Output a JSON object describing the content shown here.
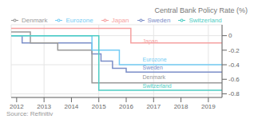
{
  "chart_data": {
    "type": "line",
    "title": "Central Bank Policy Rate (%)",
    "source": "Source: Refinitiv",
    "xlim": [
      2011.8,
      2019.5
    ],
    "ylim": [
      -0.85,
      0.15
    ],
    "xticks": [
      2012,
      2013,
      2014,
      2015,
      2016,
      2017,
      2018,
      2019
    ],
    "yticks": [
      0,
      -0.2,
      -0.4,
      -0.6,
      -0.8
    ],
    "grid": true,
    "legend": "top left",
    "series": [
      {
        "name": "Sweden",
        "color": "#7b8ec8",
        "x": [
          2011.8,
          2012.2,
          2012.2,
          2014.75,
          2014.75,
          2015.08,
          2015.08,
          2015.5,
          2015.5,
          2016.0,
          2016.0,
          2019.5
        ],
        "values": [
          0.0,
          0.0,
          -0.1,
          -0.1,
          -0.25,
          -0.25,
          -0.35,
          -0.35,
          -0.45,
          -0.45,
          -0.5,
          -0.5
        ]
      },
      {
        "name": "Denmark",
        "color": "#999999",
        "x": [
          2011.8,
          2012.5,
          2012.5,
          2013.5,
          2013.5,
          2014.75,
          2014.75,
          2019.5
        ],
        "values": [
          0.05,
          0.05,
          -0.1,
          -0.1,
          -0.2,
          -0.2,
          -0.65,
          -0.65
        ]
      },
      {
        "name": "Eurozone",
        "color": "#74ccf4",
        "x": [
          2011.8,
          2014.75,
          2014.75,
          2015.75,
          2015.75,
          2019.5
        ],
        "values": [
          0.0,
          0.0,
          -0.2,
          -0.2,
          -0.4,
          -0.4
        ]
      },
      {
        "name": "Switzerland",
        "color": "#4ecdc4",
        "x": [
          2011.8,
          2015.0,
          2015.0,
          2019.5
        ],
        "values": [
          0.0,
          0.0,
          -0.75,
          -0.75
        ]
      },
      {
        "name": "Japan",
        "color": "#f5a0a0",
        "x": [
          2011.8,
          2016.17,
          2016.17,
          2019.5
        ],
        "values": [
          0.1,
          0.1,
          -0.1,
          -0.1
        ]
      }
    ],
    "annotations": [
      {
        "text": "Japan",
        "x": 2016.6,
        "y": -0.07,
        "color": "#f5a0a0"
      },
      {
        "text": "Eurozone",
        "x": 2016.6,
        "y": -0.33,
        "color": "#74ccf4"
      },
      {
        "text": "Sweden",
        "x": 2016.6,
        "y": -0.44,
        "color": "#7b8ec8"
      },
      {
        "text": "Denmark",
        "x": 2016.6,
        "y": -0.575,
        "color": "#999999"
      },
      {
        "text": "Switzerland",
        "x": 2016.6,
        "y": -0.69,
        "color": "#4ecdc4"
      }
    ]
  }
}
